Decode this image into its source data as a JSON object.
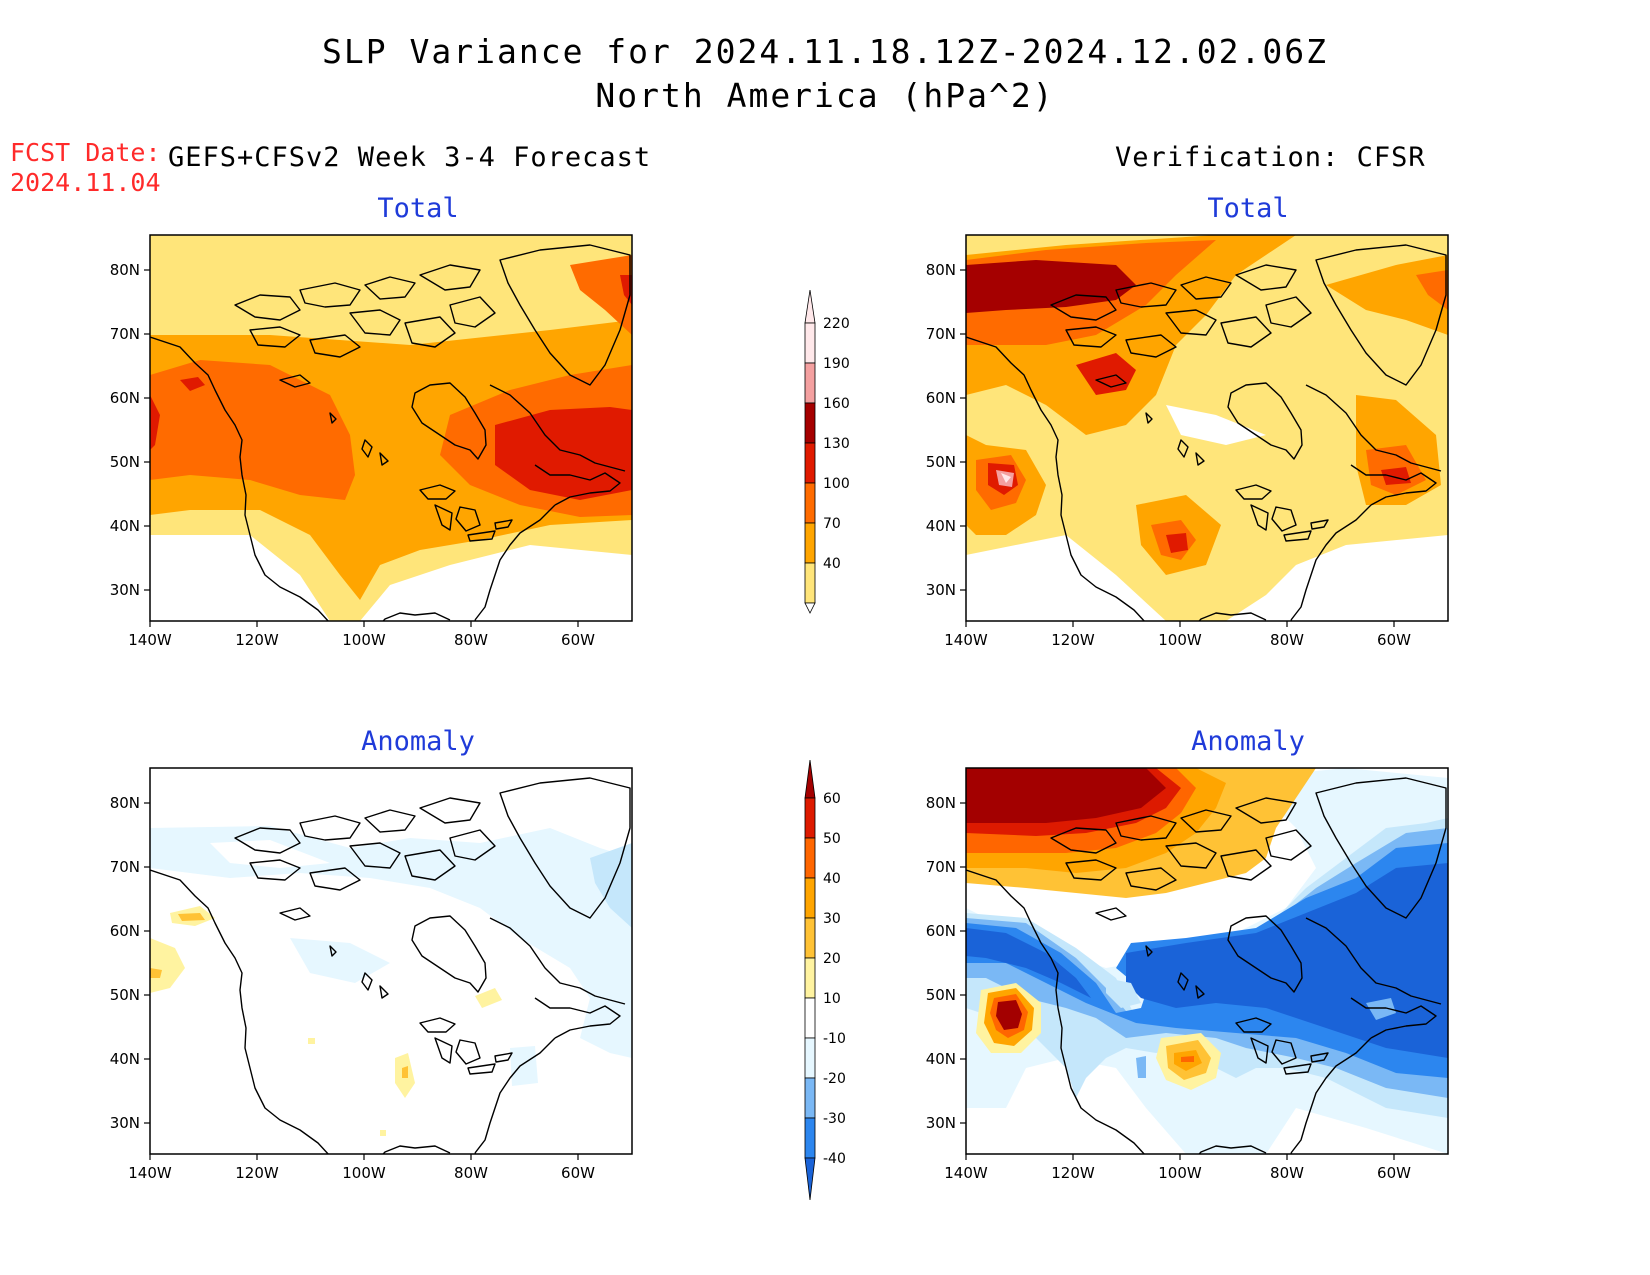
{
  "title": {
    "line1": "SLP Variance for 2024.11.18.12Z-2024.12.02.06Z",
    "line2": "North America (hPa^2)"
  },
  "forecast": {
    "label": "FCST Date:",
    "date": "2024.11.04",
    "header": "GEFS+CFSv2 Week 3-4 Forecast"
  },
  "verification": {
    "header": "Verification: CFSR"
  },
  "panels": {
    "total_title": "Total",
    "anomaly_title": "Anomaly"
  },
  "axes": {
    "lat_labels": [
      "80N",
      "70N",
      "60N",
      "50N",
      "40N",
      "30N"
    ],
    "lon_labels": [
      "140W",
      "120W",
      "100W",
      "80W",
      "60W"
    ],
    "lat_values": [
      80,
      70,
      60,
      50,
      40,
      30
    ],
    "lon_values": [
      -140,
      -120,
      -100,
      -80,
      -60
    ],
    "lat_range": [
      25,
      85
    ],
    "lon_range": [
      -140,
      -50
    ]
  },
  "colorbar_total": {
    "levels": [
      "40",
      "70",
      "100",
      "130",
      "160",
      "190",
      "220"
    ],
    "colors": [
      "#ffffff",
      "#ffe57a",
      "#ffa500",
      "#ff6b00",
      "#e01a00",
      "#a50000",
      "#f4a0a0",
      "#ffe8ea"
    ]
  },
  "colorbar_anomaly": {
    "levels": [
      "-40",
      "-30",
      "-20",
      "-10",
      "10",
      "20",
      "30",
      "40",
      "50",
      "60"
    ],
    "colors": [
      "#1a63d8",
      "#2c86ef",
      "#7ab8f5",
      "#c5e7fb",
      "#e6f7ff",
      "#ffffff",
      "#fff3a0",
      "#ffc235",
      "#ffa500",
      "#ff6600",
      "#dd1a00",
      "#a30000"
    ]
  }
}
